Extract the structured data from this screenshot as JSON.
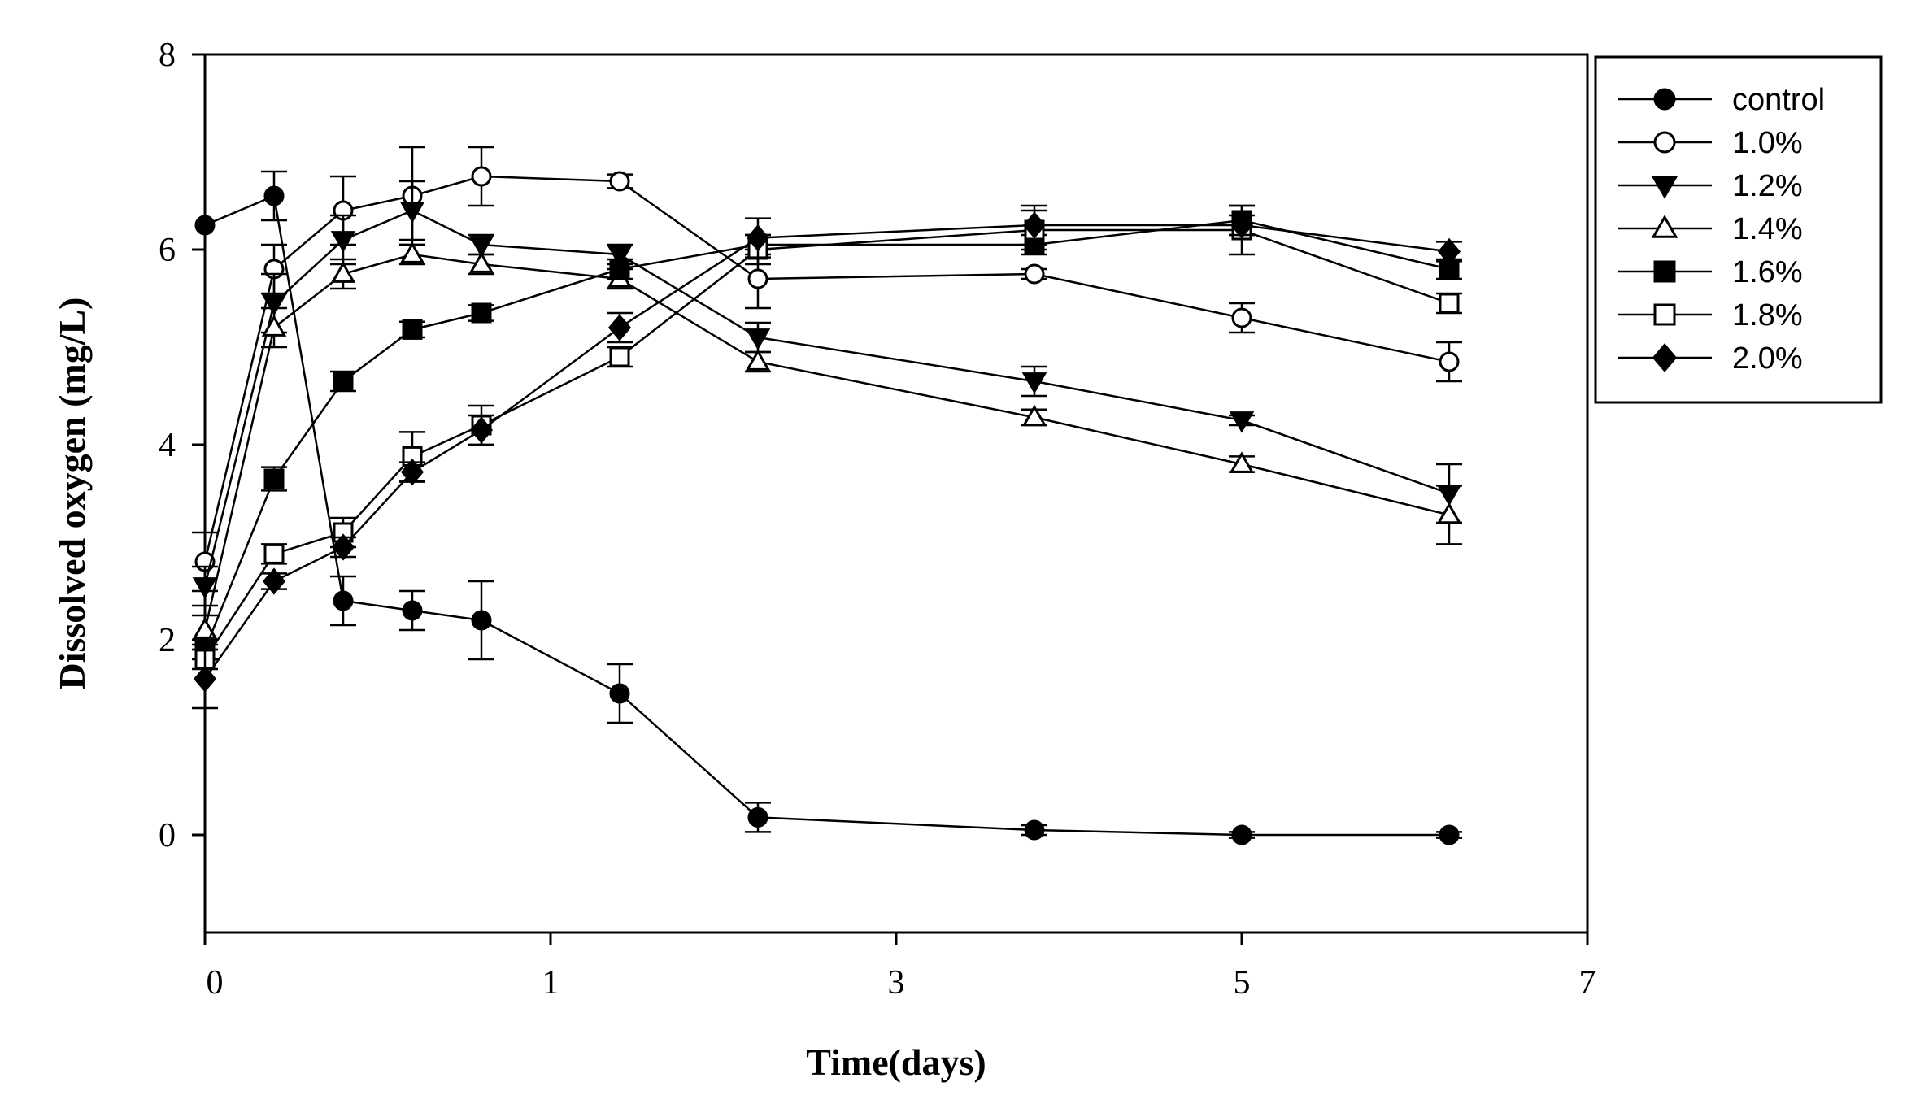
{
  "chart_data": {
    "type": "line",
    "title": "",
    "xlabel": "Time(days)",
    "ylabel": "Dissolved oxygen (mg/L)",
    "xlim": [
      0,
      8
    ],
    "ylim": [
      -1,
      8
    ],
    "x_ticks": [
      0,
      2,
      4,
      6,
      8
    ],
    "x_tick_labels": [
      "0",
      "1",
      "3",
      "5",
      "7"
    ],
    "y_ticks": [
      0,
      2,
      4,
      6,
      8
    ],
    "y_tick_labels": [
      "0",
      "2",
      "4",
      "6",
      "8"
    ],
    "legend_position": "outside-top-right",
    "series": [
      {
        "name": "control",
        "marker": "circle",
        "filled": true,
        "x": [
          0,
          0.4,
          0.8,
          1.2,
          1.6,
          2.4,
          3.2,
          4.8,
          6.0,
          7.2
        ],
        "y": [
          6.25,
          6.55,
          2.4,
          2.3,
          2.2,
          1.45,
          0.18,
          0.05,
          0.0,
          0.0
        ],
        "err": [
          0,
          0.25,
          0.25,
          0.2,
          0.4,
          0.3,
          0.15,
          0.05,
          0.03,
          0.03
        ]
      },
      {
        "name": "1.0%",
        "marker": "circle",
        "filled": false,
        "x": [
          0,
          0.4,
          0.8,
          1.2,
          1.6,
          2.4,
          3.2,
          4.8,
          6.0,
          7.2
        ],
        "y": [
          2.8,
          5.8,
          6.4,
          6.55,
          6.75,
          6.7,
          5.7,
          5.75,
          5.3,
          4.85
        ],
        "err": [
          0.3,
          0.25,
          0.35,
          0.5,
          0.3,
          0.07,
          0.3,
          0.05,
          0.15,
          0.2
        ]
      },
      {
        "name": "1.2%",
        "marker": "triangle-down",
        "filled": true,
        "x": [
          0,
          0.4,
          0.8,
          1.2,
          1.6,
          2.4,
          3.2,
          4.8,
          6.0,
          7.2
        ],
        "y": [
          2.55,
          5.45,
          6.1,
          6.4,
          6.05,
          5.95,
          5.1,
          4.65,
          4.25,
          3.5
        ],
        "err": [
          0.2,
          0.3,
          0.25,
          0.3,
          0.1,
          0.1,
          0.15,
          0.15,
          0.05,
          0.3
        ]
      },
      {
        "name": "1.4%",
        "marker": "triangle-up",
        "filled": false,
        "x": [
          0,
          0.4,
          0.8,
          1.2,
          1.6,
          2.4,
          3.2,
          4.8,
          6.0,
          7.2
        ],
        "y": [
          2.1,
          5.2,
          5.75,
          5.95,
          5.85,
          5.7,
          4.85,
          4.28,
          3.8,
          3.28
        ],
        "err": [
          0.15,
          0.2,
          0.15,
          0.1,
          0.1,
          0.1,
          0.1,
          0.08,
          0.08,
          0.3
        ]
      },
      {
        "name": "1.6%",
        "marker": "square",
        "filled": true,
        "x": [
          0,
          0.4,
          0.8,
          1.2,
          1.6,
          2.4,
          3.2,
          4.8,
          6.0,
          7.2
        ],
        "y": [
          1.9,
          3.65,
          4.65,
          5.18,
          5.35,
          5.8,
          6.05,
          6.05,
          6.3,
          5.8
        ],
        "err": [
          0.1,
          0.12,
          0.1,
          0.08,
          0.08,
          0.1,
          0.1,
          0.1,
          0.15,
          0.1
        ]
      },
      {
        "name": "1.8%",
        "marker": "square",
        "filled": false,
        "x": [
          0,
          0.4,
          0.8,
          1.2,
          1.6,
          2.4,
          3.2,
          4.8,
          6.0,
          7.2
        ],
        "y": [
          1.8,
          2.88,
          3.1,
          3.88,
          4.2,
          4.9,
          6.0,
          6.2,
          6.2,
          5.45
        ],
        "err": [
          0.1,
          0.1,
          0.15,
          0.25,
          0.2,
          0.1,
          0.15,
          0.2,
          0.25,
          0.1
        ]
      },
      {
        "name": "2.0%",
        "marker": "diamond",
        "filled": true,
        "x": [
          0,
          0.4,
          0.8,
          1.2,
          1.6,
          2.4,
          3.2,
          4.8,
          6.0,
          7.2
        ],
        "y": [
          1.6,
          2.6,
          2.95,
          3.72,
          4.15,
          5.2,
          6.12,
          6.25,
          6.25,
          5.98
        ],
        "err": [
          0.3,
          0.08,
          0.1,
          0.1,
          0.15,
          0.15,
          0.2,
          0.2,
          0.1,
          0.1
        ]
      }
    ]
  }
}
